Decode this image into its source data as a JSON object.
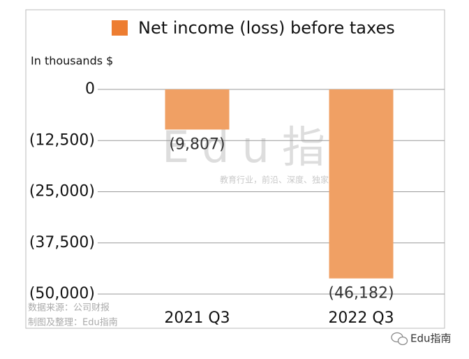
{
  "chart_data": {
    "type": "bar",
    "title": "Net income (loss) before taxes",
    "y_label": "In thousands $",
    "categories": [
      "2021 Q3",
      "2022 Q3"
    ],
    "values": [
      -9807,
      -46182
    ],
    "value_labels": [
      "(9,807)",
      "(46,182)"
    ],
    "color": "#f0a064",
    "legend_color": "#ed7d31",
    "ylim": [
      -50000,
      0
    ],
    "yticks": [
      0,
      {
        "value": -12500,
        "label": "(12,500)"
      },
      {
        "value": -25000,
        "label": "(25,000)"
      },
      {
        "value": -37500,
        "label": "(37,500)"
      },
      {
        "value": -50000,
        "label": "(50,000)"
      }
    ],
    "grid": true,
    "watermark": "Edu指南",
    "watermark_tagline": "教育行业，前沿、深度、独家",
    "source_note": "数据来源：公司财报",
    "credit": "制图及整理：Edu指南",
    "footer": "Edu指南"
  }
}
